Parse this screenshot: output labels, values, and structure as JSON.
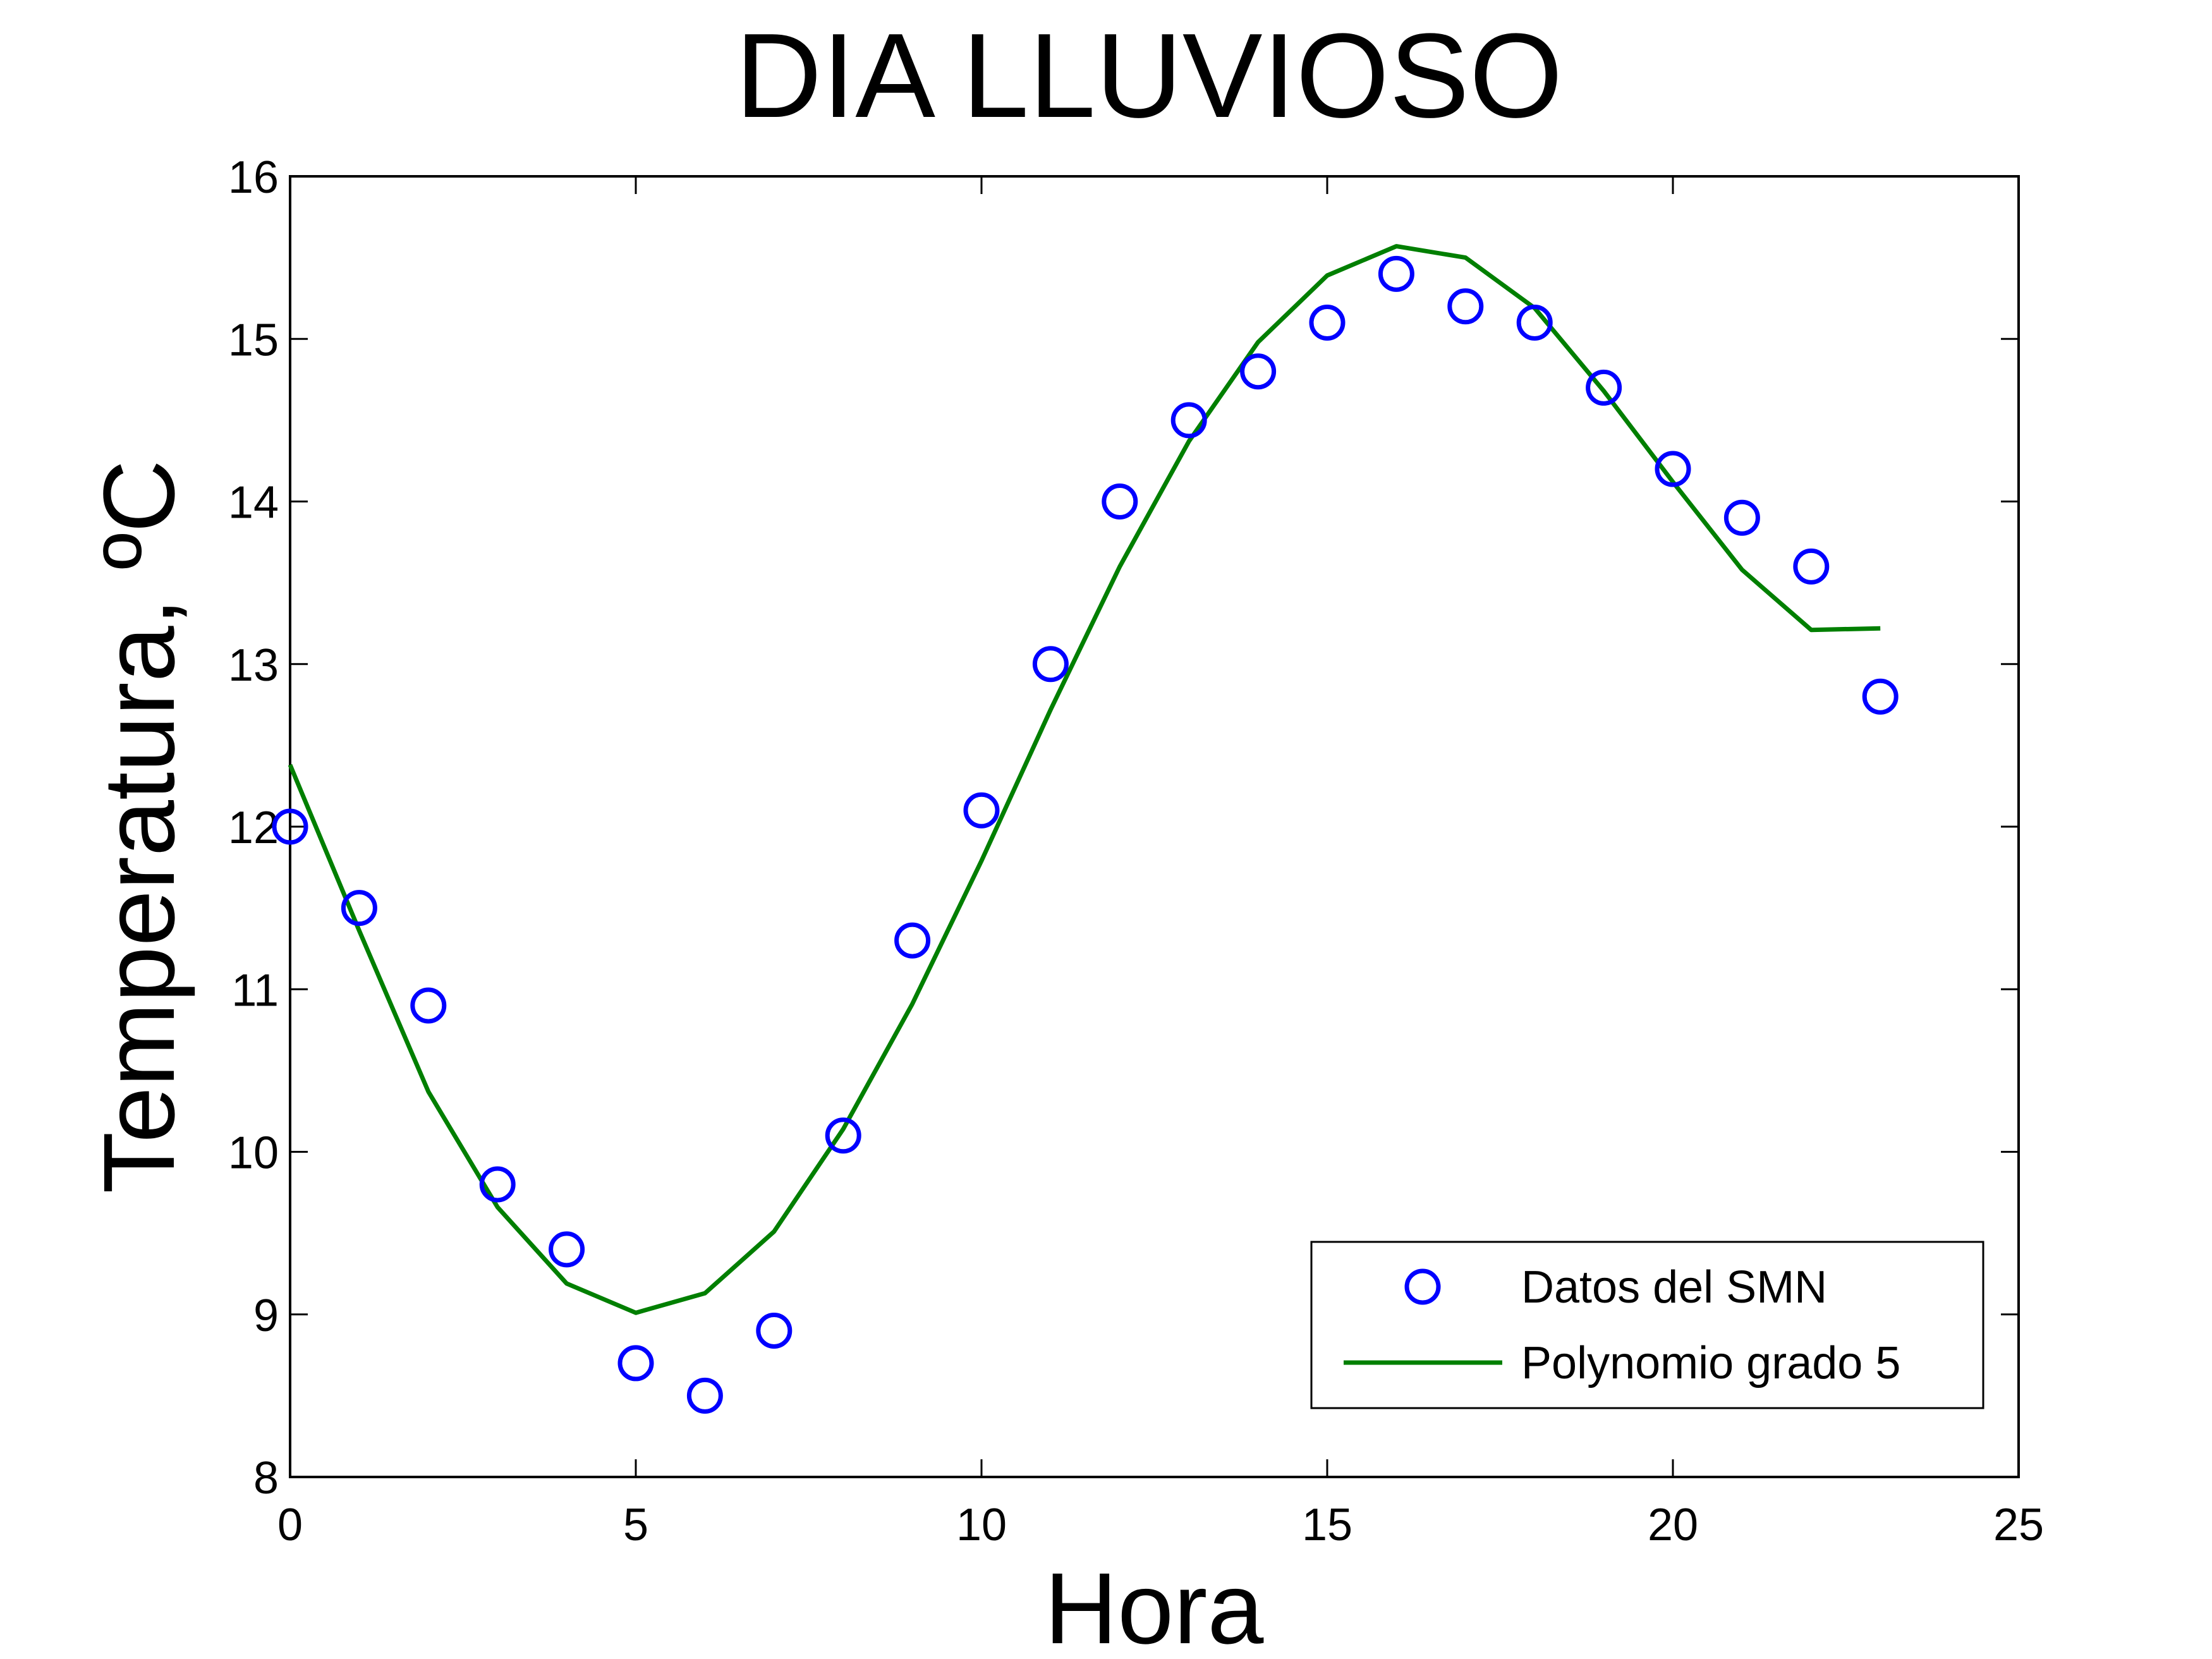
{
  "chart_data": {
    "type": "scatter",
    "title": "DIA LLUVIOSO",
    "xlabel": "Hora",
    "ylabel": "Temperatura, ºC",
    "xlim": [
      0,
      25
    ],
    "ylim": [
      8,
      16
    ],
    "xticks": [
      0,
      5,
      10,
      15,
      20,
      25
    ],
    "yticks": [
      8,
      9,
      10,
      11,
      12,
      13,
      14,
      15,
      16
    ],
    "grid": false,
    "legend_position": "bottom-right",
    "series": [
      {
        "name": "Datos del SMN",
        "kind": "markers",
        "marker": "circle",
        "color": "#0000ff",
        "x": [
          0,
          1,
          2,
          3,
          4,
          5,
          6,
          7,
          8,
          9,
          10,
          11,
          12,
          13,
          14,
          15,
          16,
          17,
          18,
          19,
          20,
          21,
          22,
          23
        ],
        "y": [
          12.0,
          11.5,
          10.9,
          9.8,
          9.4,
          8.7,
          8.5,
          8.9,
          10.1,
          11.3,
          12.1,
          13.0,
          14.0,
          14.5,
          14.8,
          15.1,
          15.4,
          15.2,
          15.1,
          14.7,
          14.2,
          13.9,
          13.6,
          12.8
        ]
      },
      {
        "name": "Polynomio grado 5",
        "kind": "line",
        "color": "#007f00",
        "x": [
          0,
          1,
          2,
          3,
          4,
          5,
          6,
          7,
          8,
          9,
          10,
          11,
          12,
          13,
          14,
          15,
          16,
          17,
          18,
          19,
          20,
          21,
          22,
          23
        ],
        "y": [
          12.38,
          11.36,
          10.37,
          9.66,
          9.19,
          9.01,
          9.13,
          9.51,
          10.14,
          10.91,
          11.79,
          12.72,
          13.6,
          14.37,
          14.98,
          15.39,
          15.57,
          15.5,
          15.19,
          14.68,
          14.12,
          13.58,
          13.21,
          13.22
        ]
      }
    ]
  }
}
